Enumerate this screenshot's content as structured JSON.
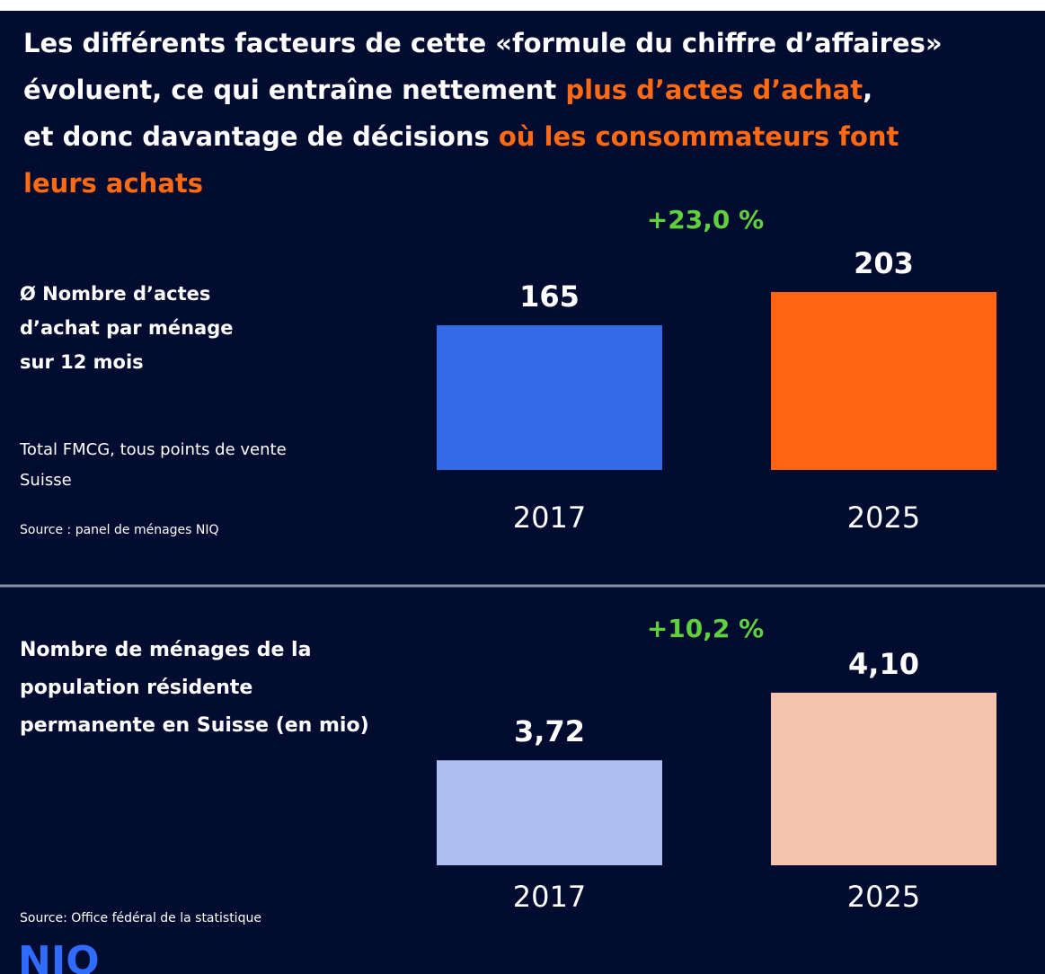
{
  "header": {
    "title_lines": [
      [
        {
          "text": "Les différents facteurs de cette «formule du chiffre d’affaires»",
          "color": "#ffffff"
        }
      ],
      [
        {
          "text": "évoluent, ce qui entraîne nettement ",
          "color": "#ffffff"
        },
        {
          "text": "plus d’actes d’achat",
          "color": "#ff6a13"
        },
        {
          "text": ",",
          "color": "#ffffff"
        }
      ],
      [
        {
          "text": "et donc davantage de décisions ",
          "color": "#ffffff"
        },
        {
          "text": "où les consommateurs font",
          "color": "#ff6a13"
        }
      ],
      [
        {
          "text": "leurs achats",
          "color": "#ff6a13"
        }
      ]
    ],
    "logo": "NIQ"
  },
  "chart_data": [
    {
      "type": "bar",
      "label_lines": [
        "Ø Nombre d’actes",
        "d’achat par ménage",
        "sur 12 mois"
      ],
      "note_lines": [
        "Total FMCG, tous points de vente",
        "Suisse"
      ],
      "source": "Source : panel de ménages NIQ",
      "annotation": "+23,0 %",
      "categories": [
        "2017",
        "2025"
      ],
      "values": [
        165,
        203
      ],
      "colors": [
        "#3569e6",
        "#ff6410"
      ],
      "ylim": [
        0,
        205
      ]
    },
    {
      "type": "bar",
      "label_lines": [
        "Nombre de ménages de la",
        "population résidente",
        "permanente en Suisse (en mio)"
      ],
      "source": "Source: Office fédéral de la statistique",
      "annotation": "+10,2 %",
      "categories": [
        "2017",
        "2025"
      ],
      "values": [
        3.72,
        4.1
      ],
      "value_labels": [
        "3,72",
        "4,10"
      ],
      "colors": [
        "#adbff0",
        "#f4c3ae"
      ],
      "ylim": [
        3.13,
        4.14
      ]
    }
  ]
}
